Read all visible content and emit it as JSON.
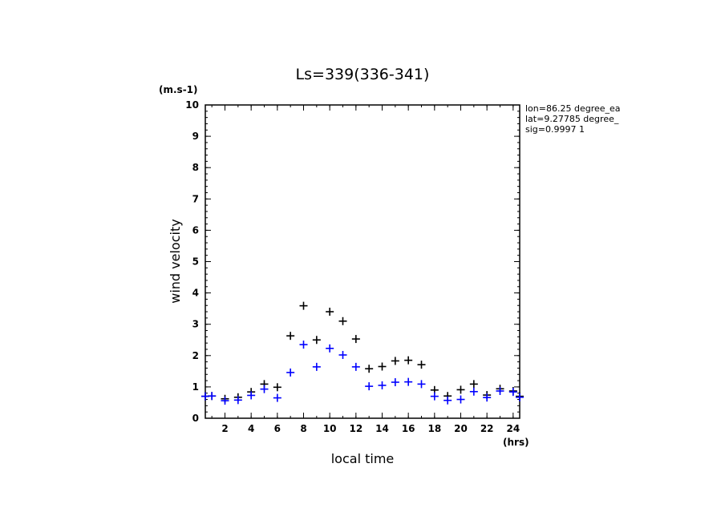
{
  "chart_data": {
    "type": "scatter",
    "title": "Ls=339(336-341)",
    "xlabel": "local time",
    "ylabel": "wind velocity",
    "x_unit": "(hrs)",
    "y_unit": "(m.s-1)",
    "xlim": [
      0.5,
      24.5
    ],
    "ylim": [
      0,
      10
    ],
    "x_ticks": [
      2,
      4,
      6,
      8,
      10,
      12,
      14,
      16,
      18,
      20,
      22,
      24
    ],
    "y_ticks": [
      0,
      1,
      2,
      3,
      4,
      5,
      6,
      7,
      8,
      9,
      10
    ],
    "annotations": [
      "lon=86.25 degree_ea",
      "lat=9.27785 degree_",
      "sig=0.9997 1"
    ],
    "marker": "+",
    "grid": false,
    "series": [
      {
        "color": "#000000",
        "x": [
          0.5,
          1,
          2,
          3,
          4,
          5,
          6,
          7,
          8,
          9,
          10,
          11,
          12,
          13,
          14,
          15,
          16,
          17,
          18,
          19,
          20,
          21,
          22,
          23,
          24,
          24.5
        ],
        "y": [
          0.7,
          0.71,
          0.62,
          0.67,
          0.84,
          1.09,
          0.99,
          2.63,
          3.59,
          2.5,
          3.4,
          3.1,
          2.53,
          1.58,
          1.65,
          1.83,
          1.85,
          1.71,
          0.9,
          0.71,
          0.91,
          1.09,
          0.74,
          0.94,
          0.87,
          0.7
        ]
      },
      {
        "color": "#0000ff",
        "x": [
          0.5,
          1,
          2,
          3,
          4,
          5,
          6,
          7,
          8,
          9,
          10,
          11,
          12,
          13,
          14,
          15,
          16,
          17,
          18,
          19,
          20,
          21,
          22,
          23,
          24,
          24.5
        ],
        "y": [
          0.7,
          0.71,
          0.56,
          0.58,
          0.73,
          0.93,
          0.65,
          1.46,
          2.35,
          1.64,
          2.23,
          2.02,
          1.64,
          1.02,
          1.05,
          1.15,
          1.16,
          1.09,
          0.7,
          0.57,
          0.6,
          0.85,
          0.66,
          0.87,
          0.84,
          0.67
        ]
      }
    ]
  }
}
